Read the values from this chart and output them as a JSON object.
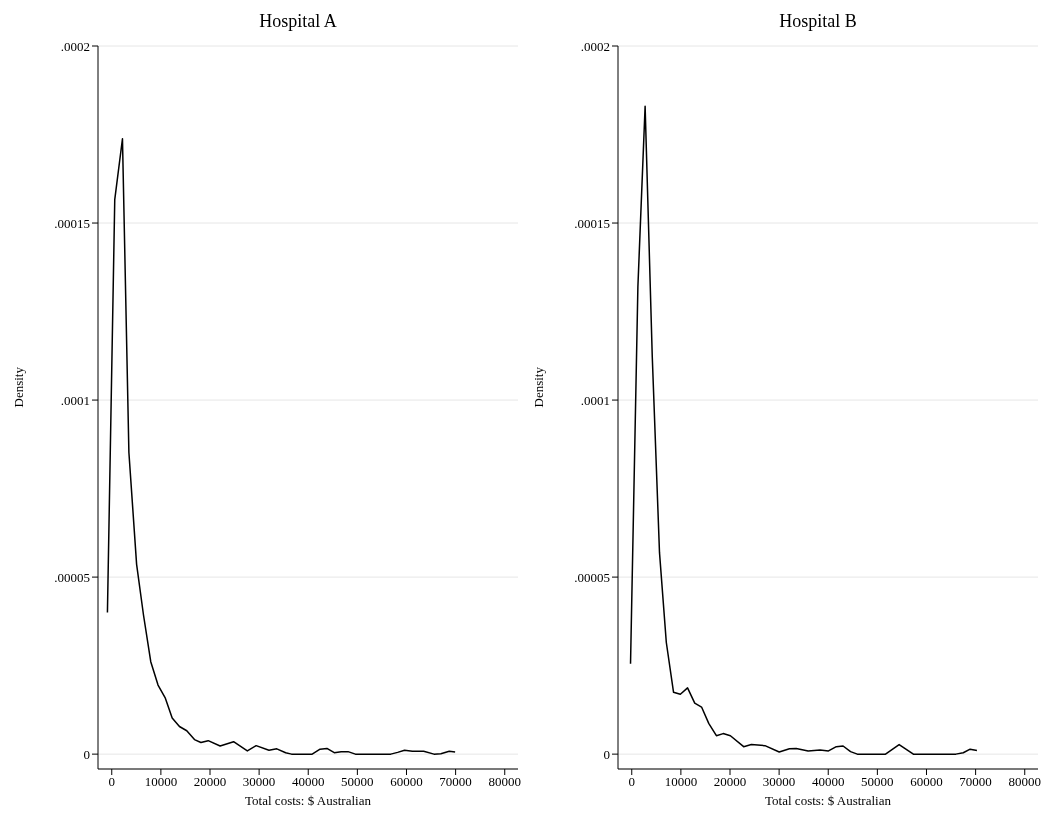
{
  "chart_data": [
    {
      "type": "line",
      "title": "Hospital A",
      "xlabel": "Total costs: $ Australian",
      "ylabel": "Density",
      "grid": "y",
      "xlim": [
        -2800,
        82700
      ],
      "xticks": [
        0,
        10000,
        20000,
        30000,
        40000,
        50000,
        60000,
        70000,
        80000
      ],
      "ylim": [
        -4.2e-06,
        0.0002
      ],
      "yticks": [
        {
          "value": 0,
          "label": "0"
        },
        {
          "value": 5e-05,
          "label": ".00005"
        },
        {
          "value": 0.0001,
          "label": ".0001"
        },
        {
          "value": 0.00015,
          "label": ".00015"
        },
        {
          "value": 0.0002,
          "label": ".0002"
        }
      ],
      "series": [
        {
          "color": "#000000",
          "x": [
            -880,
            610,
            2180,
            3490,
            5060,
            6460,
            7940,
            9420,
            10910,
            12300,
            13780,
            15270,
            16840,
            18150,
            19630,
            22060,
            24800,
            27600,
            29400,
            32000,
            33600,
            35400,
            36600,
            40800,
            42400,
            43800,
            45300,
            46700,
            48100,
            49600,
            56800,
            58200,
            59600,
            61200,
            63500,
            65600,
            67000,
            68700,
            69900
          ],
          "values": [
            4e-05,
            0.0001566,
            0.0001738,
            8.52e-05,
            5.36e-05,
            3.93e-05,
            2.61e-05,
            1.95e-05,
            1.58e-05,
            1.02e-05,
            7.8e-06,
            6.6e-06,
            4.1e-06,
            3.3e-06,
            3.8e-06,
            2.3e-06,
            3.5e-06,
            9e-07,
            2.4e-06,
            1.1e-06,
            1.5e-06,
            4e-07,
            0,
            0,
            1.4e-06,
            1.6e-06,
            4e-07,
            7e-07,
            7e-07,
            0,
            0,
            5e-07,
            1.1e-06,
            8e-07,
            8e-07,
            0,
            1e-07,
            8e-07,
            6e-07
          ]
        }
      ]
    },
    {
      "type": "line",
      "title": "Hospital B",
      "xlabel": "Total costs: $ Australian",
      "ylabel": "Density",
      "grid": "y",
      "xlim": [
        -2800,
        82700
      ],
      "xticks": [
        0,
        10000,
        20000,
        30000,
        40000,
        50000,
        60000,
        70000,
        80000
      ],
      "ylim": [
        -4.2e-06,
        0.0002
      ],
      "yticks": [
        {
          "value": 0,
          "label": "0"
        },
        {
          "value": 5e-05,
          "label": ".00005"
        },
        {
          "value": 0.0001,
          "label": ".0001"
        },
        {
          "value": 0.00015,
          "label": ".00015"
        },
        {
          "value": 0.0002,
          "label": ".0002"
        }
      ],
      "series": [
        {
          "color": "#000000",
          "x": [
            -250,
            1250,
            2720,
            4180,
            5650,
            7030,
            8500,
            9890,
            11360,
            12820,
            14210,
            15670,
            17230,
            18610,
            20080,
            22780,
            24350,
            27120,
            30020,
            32100,
            33480,
            35910,
            38330,
            40050,
            41640,
            43020,
            44540,
            45920,
            51660,
            54430,
            57330,
            65980,
            67490,
            68880,
            70270
          ],
          "values": [
            2.55e-05,
            0.0001321,
            0.000183,
            0.0001121,
            5.69e-05,
            3.16e-05,
            1.75e-05,
            1.69e-05,
            1.87e-05,
            1.44e-05,
            1.33e-05,
            8.7e-06,
            5.2e-06,
            5.8e-06,
            5.2e-06,
            2.1e-06,
            2.7e-06,
            2.4e-06,
            6e-07,
            1.5e-06,
            1.6e-06,
            9e-07,
            1.2e-06,
            9e-07,
            2.1e-06,
            2.3e-06,
            7e-07,
            0,
            0,
            2.7e-06,
            0,
            0,
            4e-07,
            1.4e-06,
            1e-06
          ]
        }
      ]
    }
  ]
}
